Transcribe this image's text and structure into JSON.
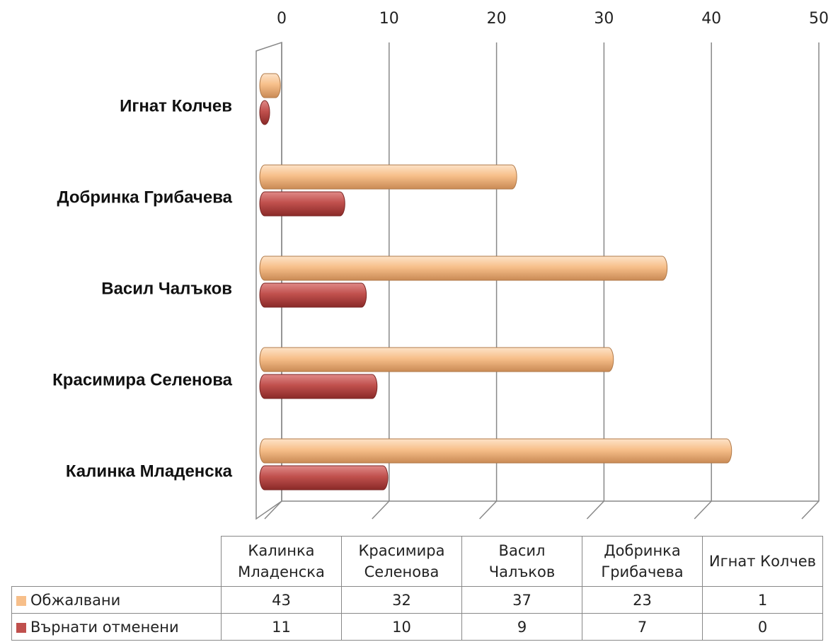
{
  "chart_data": {
    "type": "bar",
    "orientation": "horizontal",
    "categories": [
      "Калинка Младенска",
      "Красимира Селенова",
      "Васил Чалъков",
      "Добринка Грибачева",
      "Игнат Колчев"
    ],
    "series": [
      {
        "name": "Обжалвани",
        "color": "#f7bf8a",
        "values": [
          43,
          32,
          37,
          23,
          1
        ]
      },
      {
        "name": "Върнати отменени",
        "color": "#c0504d",
        "values": [
          11,
          10,
          9,
          7,
          0
        ]
      }
    ],
    "xlim": [
      0,
      50
    ],
    "xticks": [
      0,
      10,
      20,
      30,
      40,
      50
    ],
    "grid": true
  }
}
